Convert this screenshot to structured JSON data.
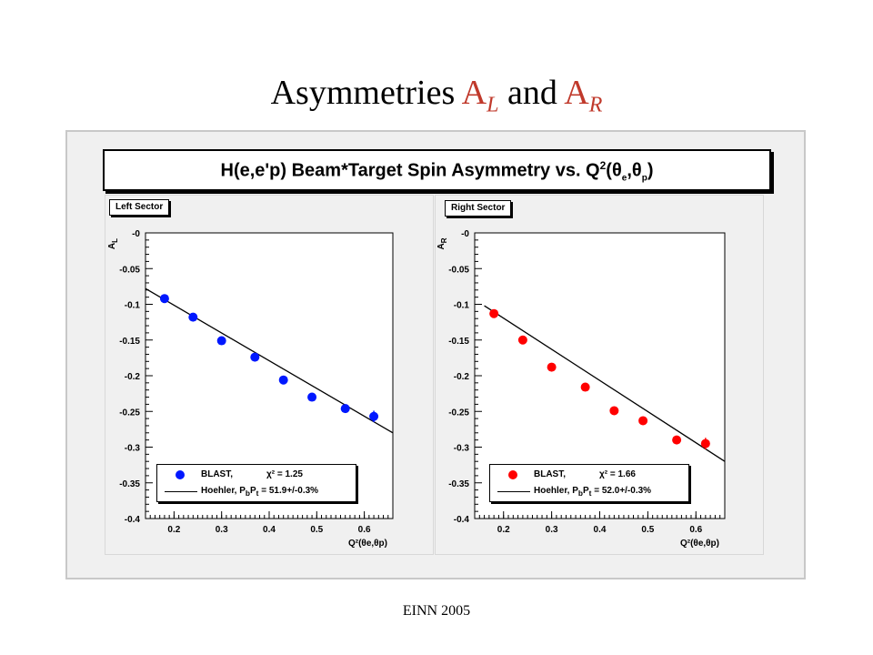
{
  "slide": {
    "title_main": "Asymmetries ",
    "title_a1": "A",
    "title_a1_sub": "L",
    "title_and": " and ",
    "title_a2": "A",
    "title_a2_sub": "R",
    "footer": "EINN 2005"
  },
  "figure": {
    "banner_main": "H(e,e'p) Beam*Target Spin Asymmetry vs. Q",
    "banner_sup": "2",
    "banner_paren_open": "(θ",
    "banner_sub_e": "e",
    "banner_comma": ",θ",
    "banner_sub_p": "p",
    "banner_paren_close": ")"
  },
  "colors": {
    "left_series": "#0018ff",
    "right_series": "#ff0000",
    "fit_line": "#000000",
    "title_accent": "#c0392b"
  },
  "chart_data": [
    {
      "type": "scatter",
      "sector_label": "Left Sector",
      "ylabel": "A_L",
      "xlabel": "Q²(θe,θp)",
      "xlim": [
        0.14,
        0.66
      ],
      "ylim": [
        -0.4,
        0.0
      ],
      "x_ticks": [
        "0.2",
        "0.3",
        "0.4",
        "0.5",
        "0.6"
      ],
      "y_ticks": [
        "-0",
        "-0.05",
        "-0.1",
        "-0.15",
        "-0.2",
        "-0.25",
        "-0.3",
        "-0.35",
        "-0.4"
      ],
      "series": [
        {
          "name": "BLAST",
          "x": [
            0.18,
            0.24,
            0.3,
            0.37,
            0.43,
            0.49,
            0.56,
            0.62
          ],
          "y": [
            -0.092,
            -0.118,
            -0.151,
            -0.174,
            -0.206,
            -0.23,
            -0.246,
            -0.257
          ],
          "err": [
            0.004,
            0.004,
            0.004,
            0.004,
            0.004,
            0.005,
            0.006,
            0.008
          ]
        }
      ],
      "fit": {
        "name": "Hoehler",
        "x": [
          0.14,
          0.66
        ],
        "y": [
          -0.078,
          -0.28
        ]
      },
      "legend": {
        "marker_label": "BLAST,",
        "chi2_label": "χ² = 1.25",
        "fit_label": "Hoehler, P",
        "fit_sub1": "b",
        "fit_mid": "P",
        "fit_sub2": "t",
        "fit_value": " = 51.9+/-0.3%"
      }
    },
    {
      "type": "scatter",
      "sector_label": "Right Sector",
      "ylabel": "A_R",
      "xlabel": "Q²(θe,θp)",
      "xlim": [
        0.14,
        0.66
      ],
      "ylim": [
        -0.4,
        0.0
      ],
      "x_ticks": [
        "0.2",
        "0.3",
        "0.4",
        "0.5",
        "0.6"
      ],
      "y_ticks": [
        "-0",
        "-0.05",
        "-0.1",
        "-0.15",
        "-0.2",
        "-0.25",
        "-0.3",
        "-0.35",
        "-0.4"
      ],
      "series": [
        {
          "name": "BLAST",
          "x": [
            0.18,
            0.24,
            0.3,
            0.37,
            0.43,
            0.49,
            0.56,
            0.62
          ],
          "y": [
            -0.113,
            -0.15,
            -0.188,
            -0.216,
            -0.249,
            -0.263,
            -0.29,
            -0.295
          ],
          "err": [
            0.004,
            0.004,
            0.004,
            0.004,
            0.004,
            0.005,
            0.006,
            0.008
          ]
        }
      ],
      "fit": {
        "name": "Hoehler",
        "x": [
          0.16,
          0.66
        ],
        "y": [
          -0.102,
          -0.32
        ]
      },
      "legend": {
        "marker_label": "BLAST,",
        "chi2_label": "χ² = 1.66",
        "fit_label": "Hoehler, P",
        "fit_sub1": "b",
        "fit_mid": "P",
        "fit_sub2": "t",
        "fit_value": " = 52.0+/-0.3%"
      }
    }
  ]
}
